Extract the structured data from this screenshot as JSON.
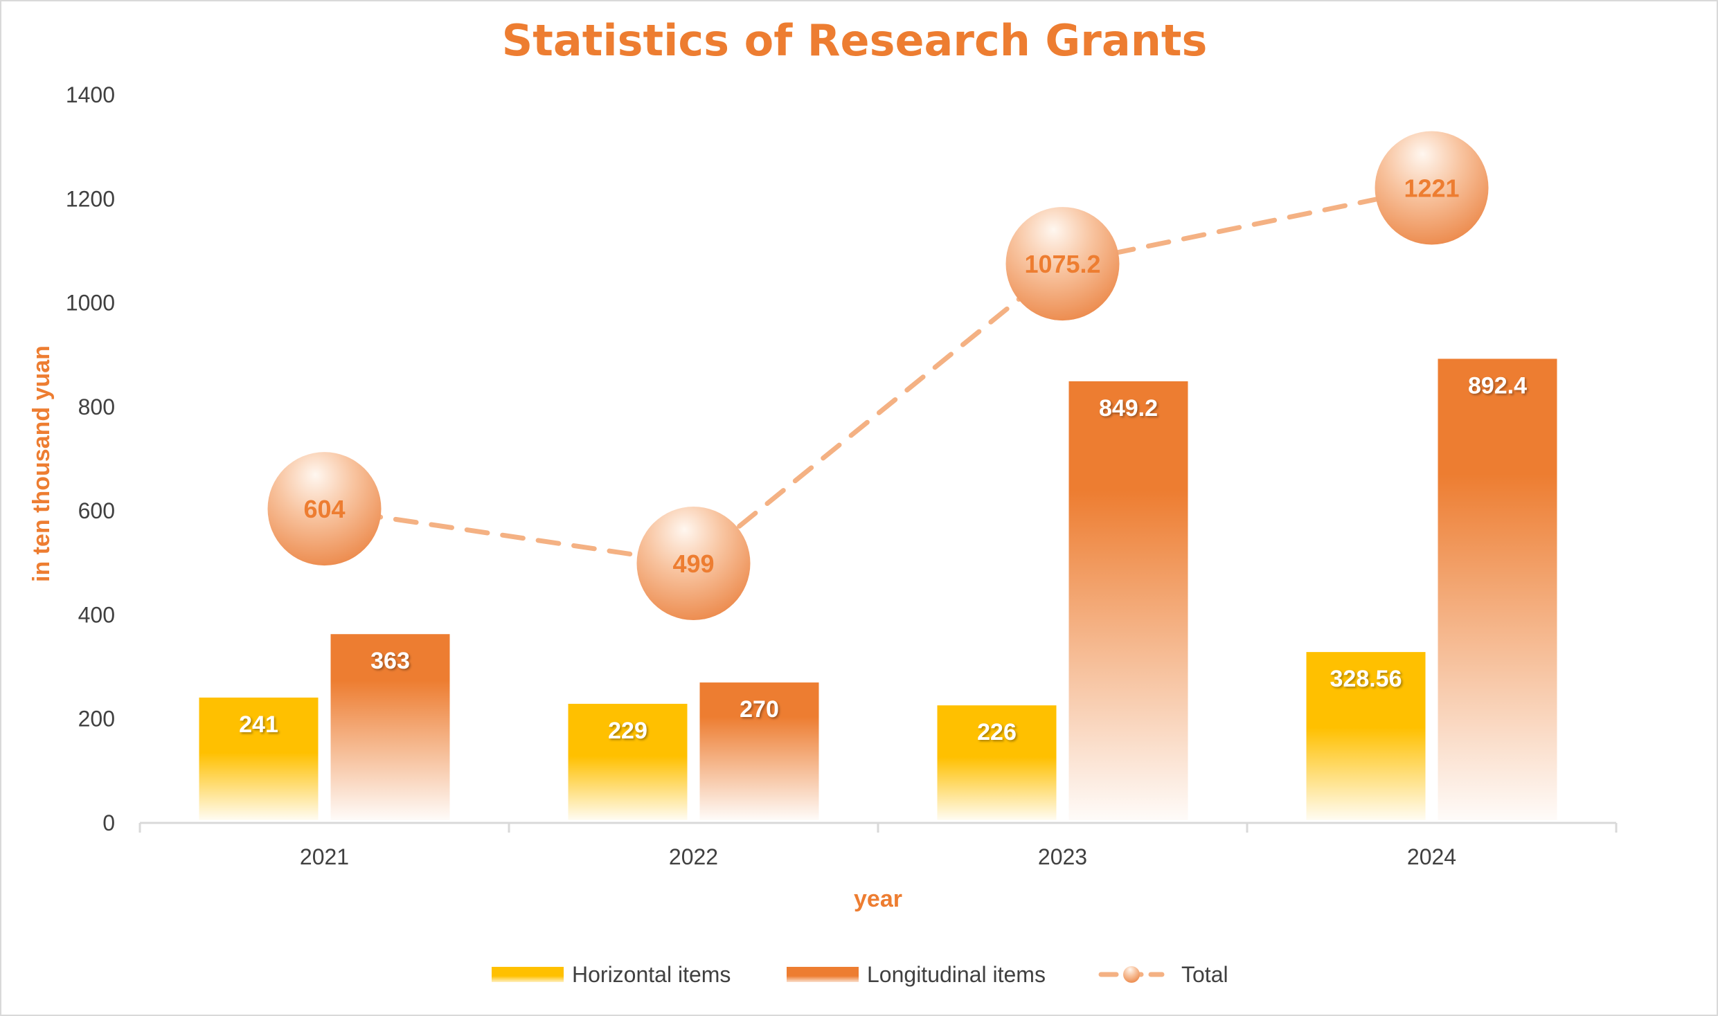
{
  "chart_data": {
    "type": "bar",
    "title": "Statistics of Research Grants",
    "xlabel": "year",
    "ylabel": "in ten thousand yuan",
    "ylim": [
      0,
      1400
    ],
    "yticks": [
      0,
      200,
      400,
      600,
      800,
      1000,
      1200,
      1400
    ],
    "categories": [
      "2021",
      "2022",
      "2023",
      "2024"
    ],
    "series": [
      {
        "name": "Horizontal items",
        "kind": "bar",
        "values": [
          241,
          229,
          226,
          328.56
        ],
        "labels": [
          "241",
          "229",
          "226",
          "328.56"
        ],
        "color": "#FFC000"
      },
      {
        "name": "Longitudinal items",
        "kind": "bar",
        "values": [
          363,
          270,
          849.2,
          892.4
        ],
        "labels": [
          "363",
          "270",
          "849.2",
          "892.4"
        ],
        "color": "#ED7D31"
      },
      {
        "name": "Total",
        "kind": "line",
        "style": "dashed",
        "marker": "bubble",
        "values": [
          604,
          499,
          1075.2,
          1221
        ],
        "labels": [
          "604",
          "499",
          "1075.2",
          "1221"
        ],
        "color": "#F4B183"
      }
    ],
    "legend": "bottom",
    "grid": false
  },
  "colors": {
    "accent": "#ED7D31",
    "title": "#ED7D31",
    "axis_title": "#ED7D31",
    "horizontal": "#FFC000",
    "longitudinal": "#ED7D31",
    "total_line": "#F4B183",
    "bubble_label": "#ED7D31",
    "axis_line": "#D9D9D9",
    "tick_text": "#404040"
  }
}
